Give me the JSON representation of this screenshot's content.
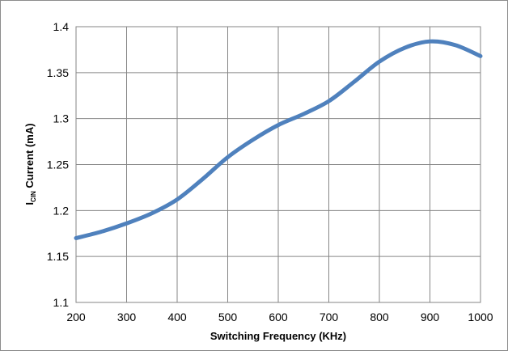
{
  "chart_data": {
    "type": "line",
    "title": "",
    "xlabel": "Switching Frequency (KHz)",
    "ylabel": {
      "prefix": "I",
      "subscript": "CIN",
      "suffix": " Current (mA)"
    },
    "x_ticks": [
      "200",
      "300",
      "400",
      "500",
      "600",
      "700",
      "800",
      "900",
      "1000"
    ],
    "y_ticks": [
      "1.1",
      "1.15",
      "1.2",
      "1.25",
      "1.3",
      "1.35",
      "1.4"
    ],
    "xlim": [
      200,
      1000
    ],
    "ylim": [
      1.1,
      1.4
    ],
    "grid": true,
    "legend": "none",
    "series": [
      {
        "color": "#4f81bd",
        "x": [
          200,
          250,
          300,
          350,
          400,
          450,
          500,
          550,
          600,
          650,
          700,
          750,
          800,
          850,
          900,
          950,
          1000
        ],
        "y": [
          1.17,
          1.177,
          1.186,
          1.197,
          1.212,
          1.234,
          1.258,
          1.277,
          1.293,
          1.305,
          1.319,
          1.34,
          1.362,
          1.377,
          1.384,
          1.38,
          1.368
        ]
      }
    ]
  }
}
